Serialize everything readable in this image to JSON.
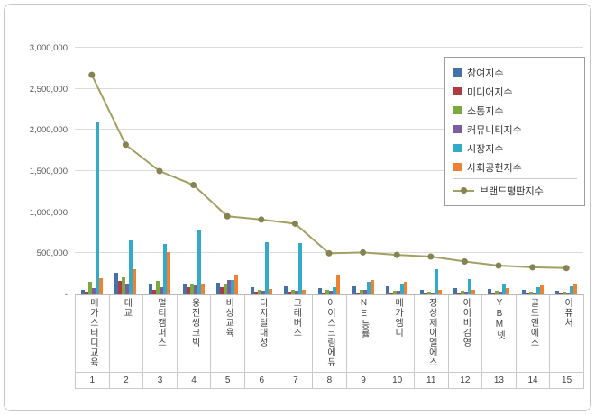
{
  "chart_data": {
    "type": "bar",
    "subtype": "grouped-bars-with-line-overlay",
    "title": "",
    "xlabel": "",
    "ylabel": "",
    "ylim": [
      0,
      3000000
    ],
    "grid": true,
    "legend_position": "top-right",
    "yticks": [
      {
        "value": 0,
        "label": "-"
      },
      {
        "value": 500000,
        "label": "500,000"
      },
      {
        "value": 1000000,
        "label": "1,000,000"
      },
      {
        "value": 1500000,
        "label": "1,500,000"
      },
      {
        "value": 2000000,
        "label": "2,000,000"
      },
      {
        "value": 2500000,
        "label": "2,500,000"
      },
      {
        "value": 3000000,
        "label": "3,000,000"
      }
    ],
    "categories": [
      "메가스터디교육",
      "대교",
      "멀티캠퍼스",
      "웅진씽크빅",
      "비상교육",
      "디지털대성",
      "크레버스",
      "아이스크림에듀",
      "NE능률",
      "메가엠디",
      "정상제이엘에스",
      "아이비김영",
      "YBM넷",
      "골드엔에스",
      "이퓨처"
    ],
    "ranks": [
      "1",
      "2",
      "3",
      "4",
      "5",
      "6",
      "7",
      "8",
      "9",
      "10",
      "11",
      "12",
      "13",
      "14",
      "15"
    ],
    "series": [
      {
        "name": "참여지수",
        "type": "bar",
        "color": "#4472a8",
        "values": [
          50000,
          260000,
          120000,
          130000,
          140000,
          90000,
          100000,
          80000,
          95000,
          95000,
          55000,
          75000,
          65000,
          50000,
          45000
        ]
      },
      {
        "name": "미디어지수",
        "type": "bar",
        "color": "#ae3b44",
        "values": [
          35000,
          160000,
          60000,
          90000,
          90000,
          35000,
          30000,
          25000,
          25000,
          25000,
          15000,
          25000,
          20000,
          18000,
          15000
        ]
      },
      {
        "name": "소통지수",
        "type": "bar",
        "color": "#79a93f",
        "values": [
          150000,
          210000,
          160000,
          130000,
          120000,
          60000,
          50000,
          55000,
          50000,
          45000,
          35000,
          45000,
          40000,
          30000,
          28000
        ]
      },
      {
        "name": "커뮤니티지수",
        "type": "bar",
        "color": "#7a5ea0",
        "values": [
          80000,
          120000,
          90000,
          110000,
          180000,
          45000,
          45000,
          40000,
          55000,
          40000,
          25000,
          35000,
          30000,
          25000,
          22000
        ]
      },
      {
        "name": "시장지수",
        "type": "bar",
        "color": "#33abc8",
        "values": [
          2100000,
          660000,
          610000,
          790000,
          180000,
          640000,
          620000,
          90000,
          150000,
          120000,
          310000,
          185000,
          120000,
          85000,
          95000
        ]
      },
      {
        "name": "사회공헌지수",
        "type": "bar",
        "color": "#ee8232",
        "values": [
          200000,
          310000,
          510000,
          120000,
          240000,
          70000,
          60000,
          240000,
          180000,
          150000,
          55000,
          55000,
          80000,
          110000,
          130000
        ]
      },
      {
        "name": "브랜드평판지수",
        "type": "line",
        "color": "#a2a064",
        "marker_color": "#85834f",
        "values": [
          2670000,
          1820000,
          1500000,
          1330000,
          950000,
          910000,
          860000,
          500000,
          510000,
          480000,
          460000,
          400000,
          350000,
          330000,
          320000
        ]
      }
    ]
  }
}
